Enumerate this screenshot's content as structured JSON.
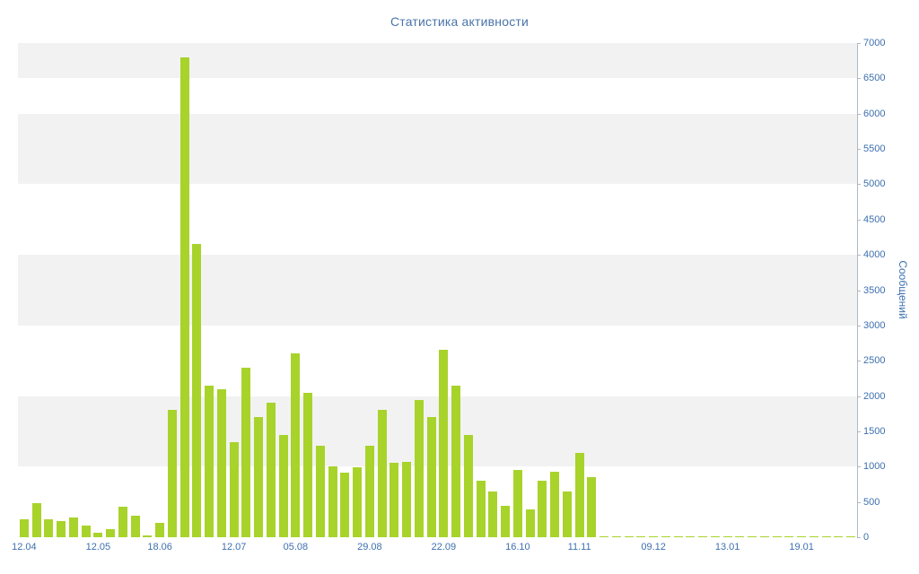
{
  "chart_data": {
    "type": "bar",
    "title": "Статистика активности",
    "ylabel": "Сообщений",
    "xlabel": "",
    "y_axis_side": "right",
    "legend": "none",
    "grid": "alternating-horizontal-bands",
    "ylim": [
      0,
      7000
    ],
    "y_tick_step": 500,
    "y_ticks": [
      0,
      500,
      1000,
      1500,
      2000,
      2500,
      3000,
      3500,
      4000,
      4500,
      5000,
      5500,
      6000,
      6500,
      7000
    ],
    "x_tick_labels": [
      {
        "label": "12.04",
        "index": 0
      },
      {
        "label": "12.05",
        "index": 6
      },
      {
        "label": "18.06",
        "index": 11
      },
      {
        "label": "12.07",
        "index": 17
      },
      {
        "label": "05.08",
        "index": 22
      },
      {
        "label": "29.08",
        "index": 28
      },
      {
        "label": "22.09",
        "index": 34
      },
      {
        "label": "16.10",
        "index": 40
      },
      {
        "label": "11.11",
        "index": 45
      },
      {
        "label": "09.12",
        "index": 51
      },
      {
        "label": "13.01",
        "index": 57
      },
      {
        "label": "19.01",
        "index": 63
      }
    ],
    "values": [
      250,
      480,
      250,
      230,
      280,
      160,
      60,
      110,
      430,
      300,
      25,
      200,
      1800,
      6800,
      4150,
      2150,
      2100,
      1350,
      2400,
      1700,
      1900,
      1450,
      2600,
      2050,
      1300,
      1000,
      920,
      990,
      1300,
      1800,
      1050,
      1070,
      1950,
      1700,
      2650,
      2150,
      1450,
      800,
      650,
      450,
      950,
      400,
      800,
      930,
      650,
      1200,
      850,
      12,
      8,
      15,
      10,
      12,
      8,
      15,
      10,
      12,
      8,
      15,
      10,
      12,
      8,
      15,
      10,
      12,
      8,
      15,
      10,
      12
    ],
    "stripe_bands": [
      [
        1000,
        2000
      ],
      [
        3000,
        4000
      ],
      [
        5000,
        6000
      ],
      [
        6500,
        7000
      ]
    ],
    "colors": {
      "bar": "#a8d32b",
      "title": "#4a74a8",
      "tick": "#3d6fae",
      "axis": "#aeb9c6",
      "stripe": "#f2f2f2",
      "background": "#ffffff"
    }
  }
}
